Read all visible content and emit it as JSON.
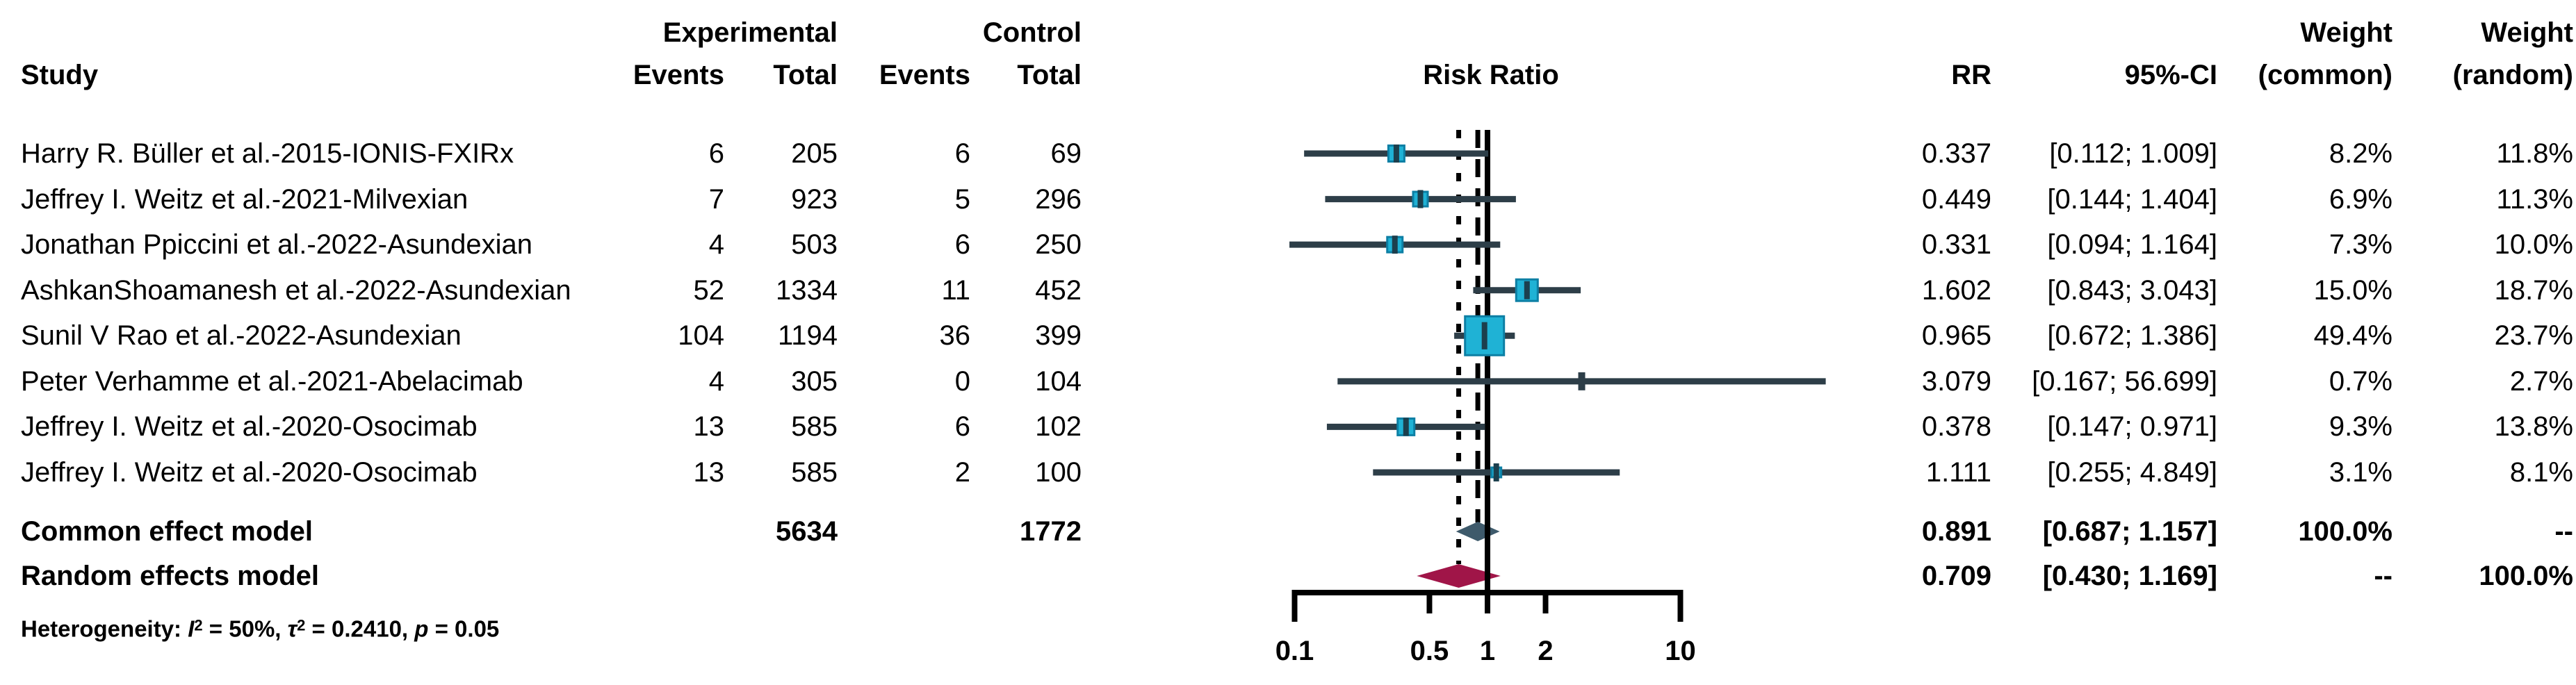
{
  "columns": {
    "study": "Study",
    "group_exp": "Experimental",
    "group_ctrl": "Control",
    "events": "Events",
    "total": "Total",
    "events2": "Events",
    "total2": "Total",
    "risk_ratio": "Risk Ratio",
    "rr": "RR",
    "ci": "95%-CI",
    "weight": "Weight",
    "weight2": "Weight",
    "weight_common": "(common)",
    "weight_random": "(random)"
  },
  "chart_data": {
    "type": "forest",
    "x_scale": "log",
    "axis": {
      "ticks": [
        0.1,
        0.5,
        1,
        2,
        10
      ],
      "labels": [
        "0.1",
        "0.5",
        "1",
        "2",
        "10"
      ]
    },
    "reference_lines": {
      "null_line": 1.0,
      "common_dashed": 0.891,
      "random_dotted": 0.709
    },
    "studies": [
      {
        "name": "Harry R. Büller et al.-2015-IONIS-FXIRx",
        "events_exp": "6",
        "total_exp": "205",
        "events_ctrl": "6",
        "total_ctrl": "69",
        "rr": 0.337,
        "ci_low": 0.112,
        "ci_high": 1.009,
        "rr_label": "0.337",
        "ci_label": "[0.112; 1.009]",
        "w_common": "8.2%",
        "w_random": "11.8%"
      },
      {
        "name": "Jeffrey I. Weitz et al.-2021-Milvexian",
        "events_exp": "7",
        "total_exp": "923",
        "events_ctrl": "5",
        "total_ctrl": "296",
        "rr": 0.449,
        "ci_low": 0.144,
        "ci_high": 1.404,
        "rr_label": "0.449",
        "ci_label": "[0.144; 1.404]",
        "w_common": "6.9%",
        "w_random": "11.3%"
      },
      {
        "name": "Jonathan Ppiccini et al.-2022-Asundexian",
        "events_exp": "4",
        "total_exp": "503",
        "events_ctrl": "6",
        "total_ctrl": "250",
        "rr": 0.331,
        "ci_low": 0.094,
        "ci_high": 1.164,
        "rr_label": "0.331",
        "ci_label": "[0.094; 1.164]",
        "w_common": "7.3%",
        "w_random": "10.0%"
      },
      {
        "name": "AshkanShoamanesh et al.-2022-Asundexian",
        "events_exp": "52",
        "total_exp": "1334",
        "events_ctrl": "11",
        "total_ctrl": "452",
        "rr": 1.602,
        "ci_low": 0.843,
        "ci_high": 3.043,
        "rr_label": "1.602",
        "ci_label": "[0.843; 3.043]",
        "w_common": "15.0%",
        "w_random": "18.7%"
      },
      {
        "name": "Sunil V Rao et al.-2022-Asundexian",
        "events_exp": "104",
        "total_exp": "1194",
        "events_ctrl": "36",
        "total_ctrl": "399",
        "rr": 0.965,
        "ci_low": 0.672,
        "ci_high": 1.386,
        "rr_label": "0.965",
        "ci_label": "[0.672; 1.386]",
        "w_common": "49.4%",
        "w_random": "23.7%"
      },
      {
        "name": "Peter Verhamme et al.-2021-Abelacimab",
        "events_exp": "4",
        "total_exp": "305",
        "events_ctrl": "0",
        "total_ctrl": "104",
        "rr": 3.079,
        "ci_low": 0.167,
        "ci_high": 56.699,
        "rr_label": "3.079",
        "ci_label": "[0.167; 56.699]",
        "w_common": "0.7%",
        "w_random": "2.7%"
      },
      {
        "name": "Jeffrey I. Weitz et al.-2020-Osocimab",
        "events_exp": "13",
        "total_exp": "585",
        "events_ctrl": "6",
        "total_ctrl": "102",
        "rr": 0.378,
        "ci_low": 0.147,
        "ci_high": 0.971,
        "rr_label": "0.378",
        "ci_label": "[0.147; 0.971]",
        "w_common": "9.3%",
        "w_random": "13.8%"
      },
      {
        "name": "Jeffrey I. Weitz et al.-2020-Osocimab",
        "events_exp": "13",
        "total_exp": "585",
        "events_ctrl": "2",
        "total_ctrl": "100",
        "rr": 1.111,
        "ci_low": 0.255,
        "ci_high": 4.849,
        "rr_label": "1.111",
        "ci_label": "[0.255; 4.849]",
        "w_common": "3.1%",
        "w_random": "8.1%"
      }
    ],
    "summary": {
      "common": {
        "label": "Common effect model",
        "total_exp": "5634",
        "total_ctrl": "1772",
        "rr": 0.891,
        "ci_low": 0.687,
        "ci_high": 1.157,
        "rr_label": "0.891",
        "ci_label": "[0.687; 1.157]",
        "w_common": "100.0%",
        "w_random": "--"
      },
      "random": {
        "label": "Random effects model",
        "rr": 0.709,
        "ci_low": 0.43,
        "ci_high": 1.169,
        "rr_label": "0.709",
        "ci_label": "[0.430; 1.169]",
        "w_common": "--",
        "w_random": "100.0%"
      }
    },
    "heterogeneity": {
      "prefix": "Heterogeneity: ",
      "i_sym": "I",
      "sup1": "2",
      "i_seg": " = 50%, ",
      "tau_sym": "τ",
      "sup2": "2",
      "tau_seg": " = 0.2410, ",
      "p_sym": "p",
      "p_seg": " = 0.05"
    },
    "colors": {
      "square": "#1fb2d5",
      "square_border": "#0d7fa4",
      "marker_tick": "#1c3f4d",
      "ci_line": "#2d3e48",
      "diamond_common": "#3e5a6b",
      "diamond_random": "#a01548",
      "line": "#000000"
    }
  }
}
